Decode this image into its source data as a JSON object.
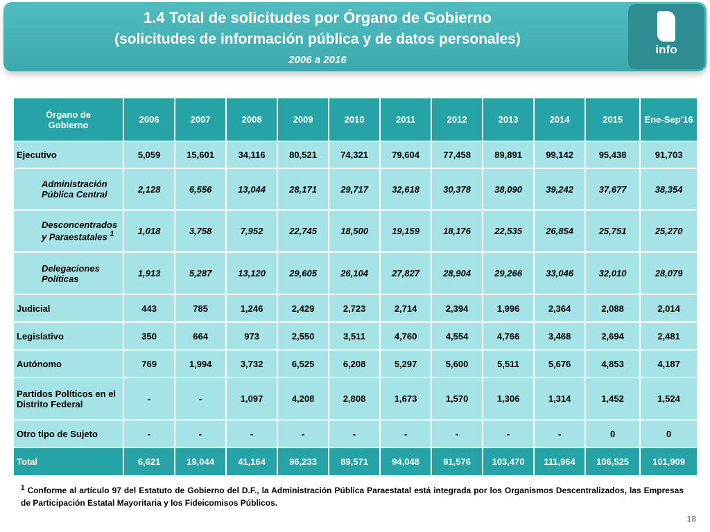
{
  "header": {
    "title": "1.4 Total de solicitudes por Órgano de Gobierno",
    "subtitle": "(solicitudes de información pública y de datos personales)",
    "period": "2006 a 2016",
    "logo": "info"
  },
  "table": {
    "columns": [
      "Órgano de Gobierno",
      "2006",
      "2007",
      "2008",
      "2009",
      "2010",
      "2011",
      "2012",
      "2013",
      "2014",
      "2015",
      "Ene-Sep’16"
    ],
    "rows": [
      {
        "label": "Ejecutivo",
        "values": [
          "5,059",
          "15,601",
          "34,116",
          "80,521",
          "74,321",
          "79,604",
          "77,458",
          "89,891",
          "99,142",
          "95,438",
          "91,703"
        ]
      },
      {
        "label": "Administración Pública Central",
        "indent": true,
        "values": [
          "2,128",
          "6,556",
          "13,044",
          "28,171",
          "29,717",
          "32,618",
          "30,378",
          "38,090",
          "39,242",
          "37,677",
          "38,354"
        ]
      },
      {
        "label": "Desconcentrados y Paraestatales",
        "sup": "1",
        "indent": true,
        "values": [
          "1,018",
          "3,758",
          "7,952",
          "22,745",
          "18,500",
          "19,159",
          "18,176",
          "22,535",
          "26,854",
          "25,751",
          "25,270"
        ]
      },
      {
        "label": "Delegaciones Políticas",
        "indent": true,
        "values": [
          "1,913",
          "5,287",
          "13,120",
          "29,605",
          "26,104",
          "27,827",
          "28,904",
          "29,266",
          "33,046",
          "32,010",
          "28,079"
        ]
      },
      {
        "label": "Judicial",
        "values": [
          "443",
          "785",
          "1,246",
          "2,429",
          "2,723",
          "2,714",
          "2,394",
          "1,996",
          "2,364",
          "2,088",
          "2,014"
        ]
      },
      {
        "label": "Legislativo",
        "values": [
          "350",
          "664",
          "973",
          "2,550",
          "3,511",
          "4,760",
          "4,554",
          "4,766",
          "3,468",
          "2,694",
          "2,481"
        ]
      },
      {
        "label": "Autónomo",
        "values": [
          "769",
          "1,994",
          "3,732",
          "6,525",
          "6,208",
          "5,297",
          "5,600",
          "5,511",
          "5,676",
          "4,853",
          "4,187"
        ]
      },
      {
        "label": "Partidos Políticos en el Distrito Federal",
        "values": [
          "-",
          "-",
          "1,097",
          "4,208",
          "2,808",
          "1,673",
          "1,570",
          "1,306",
          "1,314",
          "1,452",
          "1,524"
        ]
      },
      {
        "label": "Otro tipo de Sujeto",
        "values": [
          "-",
          "-",
          "-",
          "-",
          "-",
          "-",
          "-",
          "-",
          "-",
          "0",
          "0"
        ]
      },
      {
        "label": "Total",
        "total": true,
        "values": [
          "6,621",
          "19,044",
          "41,164",
          "96,233",
          "89,571",
          "94,048",
          "91,576",
          "103,470",
          "111,964",
          "106,525",
          "101,909"
        ]
      }
    ]
  },
  "footnote": {
    "mark": "1",
    "text": "Conforme al artículo 97 del Estatuto de Gobierno del D.F., la Administración Pública Paraestatal está integrada por los Organismos Descentralizados, las Empresas de Participación Estatal Mayoritaria y los Fideicomisos Públicos."
  },
  "page_number": "18"
}
